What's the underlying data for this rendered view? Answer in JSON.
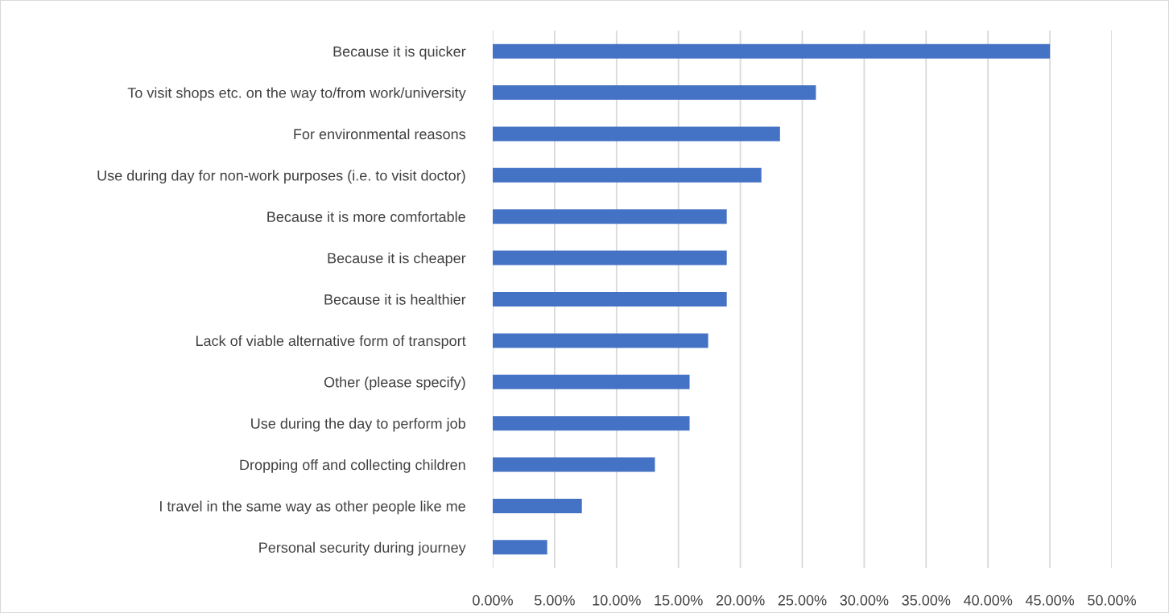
{
  "chart_data": {
    "type": "bar",
    "orientation": "horizontal",
    "categories": [
      "Because it is quicker",
      "To visit shops etc. on the way to/from work/university",
      "For environmental reasons",
      "Use during day for non-work purposes (i.e. to visit doctor)",
      "Because it is more comfortable",
      "Because it is cheaper",
      "Because it is healthier",
      "Lack of viable alternative form of transport",
      "Other (please specify)",
      "Use during the day to perform job",
      "Dropping off and collecting children",
      "I travel in the same way as other people like me",
      "Personal security during journey"
    ],
    "values": [
      45.0,
      26.1,
      23.2,
      21.7,
      18.9,
      18.9,
      18.9,
      17.4,
      15.9,
      15.9,
      13.1,
      7.2,
      4.4
    ],
    "color": "#4472c4",
    "xlim": [
      0,
      50
    ],
    "xticks": [
      {
        "value": 0,
        "label": "0.00%"
      },
      {
        "value": 5,
        "label": "5.00%"
      },
      {
        "value": 10,
        "label": "10.00%"
      },
      {
        "value": 15,
        "label": "15.00%"
      },
      {
        "value": 20,
        "label": "20.00%"
      },
      {
        "value": 25,
        "label": "25.00%"
      },
      {
        "value": 30,
        "label": "30.00%"
      },
      {
        "value": 35,
        "label": "35.00%"
      },
      {
        "value": 40,
        "label": "40.00%"
      },
      {
        "value": 45,
        "label": "45.00%"
      },
      {
        "value": 50,
        "label": "50.00%"
      }
    ],
    "grid": "x",
    "legend": false
  }
}
